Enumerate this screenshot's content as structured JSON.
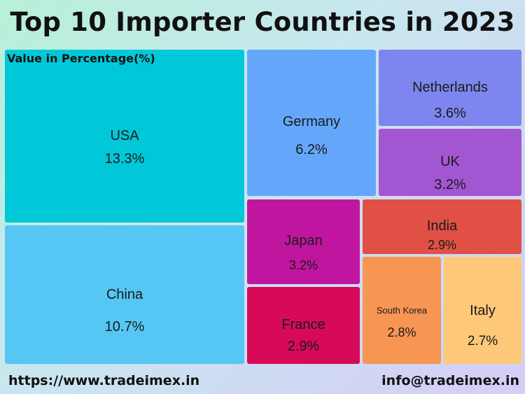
{
  "chart_data": {
    "type": "treemap",
    "title": "Top 10 Importer Countries in 2023",
    "subtitle": "Value in Percentage(%)",
    "items": [
      {
        "name": "USA",
        "value": 13.3,
        "value_label": "13.3%",
        "color": "#00c8d8"
      },
      {
        "name": "China",
        "value": 10.7,
        "value_label": "10.7%",
        "color": "#56c6f4"
      },
      {
        "name": "Germany",
        "value": 6.2,
        "value_label": "6.2%",
        "color": "#64a7fa"
      },
      {
        "name": "Netherlands",
        "value": 3.6,
        "value_label": "3.6%",
        "color": "#7d86ee"
      },
      {
        "name": "UK",
        "value": 3.2,
        "value_label": "3.2%",
        "color": "#a356d1"
      },
      {
        "name": "Japan",
        "value": 3.2,
        "value_label": "3.2%",
        "color": "#c0169f"
      },
      {
        "name": "India",
        "value": 2.9,
        "value_label": "2.9%",
        "color": "#e05045"
      },
      {
        "name": "France",
        "value": 2.9,
        "value_label": "2.9%",
        "color": "#d60a58"
      },
      {
        "name": "South Korea",
        "value": 2.8,
        "value_label": "2.8%",
        "color": "#f79553"
      },
      {
        "name": "Italy",
        "value": 2.7,
        "value_label": "2.7%",
        "color": "#fdc877"
      }
    ]
  },
  "footer": {
    "website": "https://www.tradeimex.in",
    "email": "info@tradeimex.in"
  }
}
